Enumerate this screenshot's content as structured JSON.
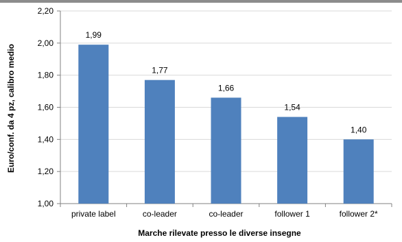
{
  "chart_data": {
    "type": "bar",
    "categories": [
      "private label",
      "co-leader",
      "co-leader",
      "follower 1",
      "follower 2*"
    ],
    "values": [
      1.99,
      1.77,
      1.66,
      1.54,
      1.4
    ],
    "value_labels": [
      "1,99",
      "1,77",
      "1,66",
      "1,54",
      "1,40"
    ],
    "ylabel": "Euro/conf. da 4 pz, calibro medio",
    "xlabel": "Marche rilevate presso le diverse insegne",
    "ylim": [
      1.0,
      2.2
    ],
    "yticks": [
      1.0,
      1.2,
      1.4,
      1.6,
      1.8,
      2.0,
      2.2
    ],
    "ytick_labels": [
      "1,00",
      "1,20",
      "1,40",
      "1,60",
      "1,80",
      "2,00",
      "2,20"
    ],
    "grid": true,
    "bar_color": "#4f81bd",
    "grid_color": "#d9d9d9"
  }
}
